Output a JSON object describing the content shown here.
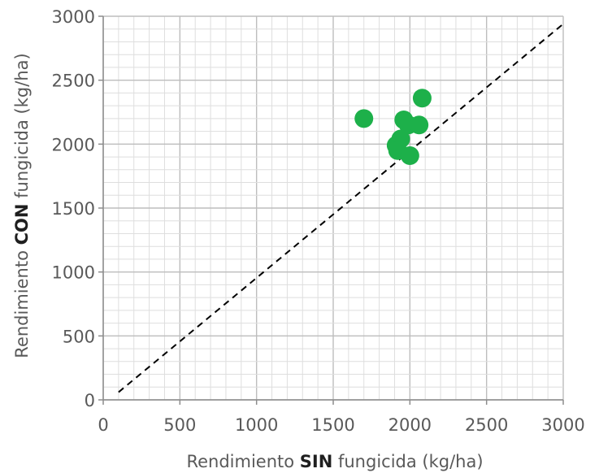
{
  "chart_data": {
    "type": "scatter",
    "title": "",
    "xlabel": {
      "prefix": "Rendimiento ",
      "bold": "SIN",
      "suffix": " fungicida (kg/ha)"
    },
    "ylabel": {
      "prefix": "Rendimiento ",
      "bold": "CON",
      "suffix": " fungicida (kg/ha)"
    },
    "xlim": [
      0,
      3000
    ],
    "ylim": [
      0,
      3000
    ],
    "xticks": [
      0,
      500,
      1000,
      1500,
      2000,
      2500,
      3000
    ],
    "yticks": [
      0,
      500,
      1000,
      1500,
      2000,
      2500,
      3000
    ],
    "xtick_labels": [
      "0",
      "500",
      "1000",
      "1500",
      "2000",
      "2500",
      "3000"
    ],
    "ytick_labels": [
      "0",
      "500",
      "1000",
      "1500",
      "2000",
      "2500",
      "3000"
    ],
    "grid": true,
    "minor_grid_step": 100,
    "major_grid_step": 500,
    "reference_line": {
      "x": [
        100,
        3000
      ],
      "y": [
        60,
        2940
      ],
      "style": "dashed",
      "color": "#000000"
    },
    "series": [
      {
        "color": "#1db04a",
        "points": [
          {
            "x": 1700,
            "y": 2200
          },
          {
            "x": 1960,
            "y": 2190
          },
          {
            "x": 1990,
            "y": 2150
          },
          {
            "x": 2080,
            "y": 2360
          },
          {
            "x": 2060,
            "y": 2150
          },
          {
            "x": 1940,
            "y": 2040
          },
          {
            "x": 1910,
            "y": 1990
          },
          {
            "x": 1920,
            "y": 1950
          },
          {
            "x": 2000,
            "y": 1910
          }
        ]
      }
    ]
  }
}
